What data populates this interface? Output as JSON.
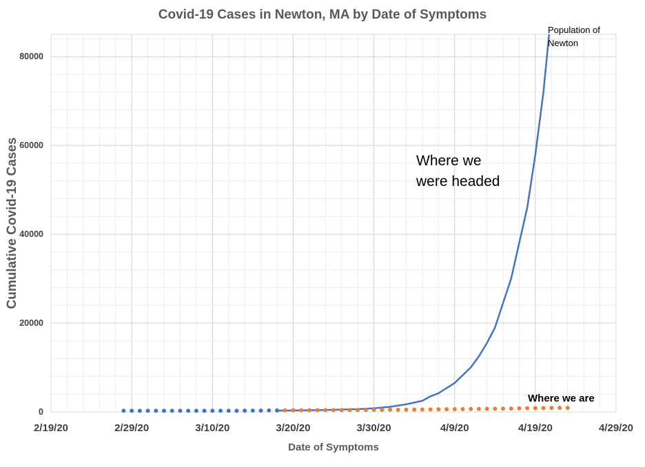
{
  "chart_data": {
    "type": "line",
    "title": "Covid-19 Cases in Newton, MA by Date of Symptoms",
    "xlabel": "Date of Symptoms",
    "ylabel": "Cumulative Covid-19 Cases",
    "x_range": [
      "2/19/20",
      "4/29/20"
    ],
    "ylim": [
      0,
      85000
    ],
    "x_ticks": [
      "2/19/20",
      "2/29/20",
      "3/10/20",
      "3/20/20",
      "3/30/20",
      "4/9/20",
      "4/19/20",
      "4/29/20"
    ],
    "y_ticks": [
      0,
      20000,
      40000,
      60000,
      80000
    ],
    "grid": true,
    "series": [
      {
        "style": "line",
        "color": "#4472C4",
        "points": [
          [
            "3/18/20",
            300
          ],
          [
            "3/20/20",
            330
          ],
          [
            "3/22/20",
            380
          ],
          [
            "3/24/20",
            440
          ],
          [
            "3/26/20",
            520
          ],
          [
            "3/28/20",
            620
          ],
          [
            "3/30/20",
            800
          ],
          [
            "4/1/20",
            1150
          ],
          [
            "4/3/20",
            1700
          ],
          [
            "4/5/20",
            2500
          ],
          [
            "4/6/20",
            3500
          ],
          [
            "4/7/20",
            4200
          ],
          [
            "4/9/20",
            6500
          ],
          [
            "4/11/20",
            10000
          ],
          [
            "4/12/20",
            12500
          ],
          [
            "4/13/20",
            15500
          ],
          [
            "4/14/20",
            19000
          ],
          [
            "4/15/20",
            24500
          ],
          [
            "4/16/20",
            30000
          ],
          [
            "4/17/20",
            38000
          ],
          [
            "4/18/20",
            46000
          ],
          [
            "4/19/20",
            58000
          ],
          [
            "4/20/20",
            72000
          ],
          [
            "4/20.7/20",
            85000
          ]
        ]
      },
      {
        "style": "dots",
        "color": "#4472C4",
        "points": [
          [
            "2/28/20",
            250
          ],
          [
            "2/29/20",
            250
          ],
          [
            "3/1/20",
            250
          ],
          [
            "3/2/20",
            250
          ],
          [
            "3/3/20",
            250
          ],
          [
            "3/4/20",
            250
          ],
          [
            "3/5/20",
            250
          ],
          [
            "3/6/20",
            250
          ],
          [
            "3/7/20",
            250
          ],
          [
            "3/8/20",
            250
          ],
          [
            "3/9/20",
            250
          ],
          [
            "3/10/20",
            250
          ],
          [
            "3/11/20",
            250
          ],
          [
            "3/12/20",
            250
          ],
          [
            "3/13/20",
            250
          ],
          [
            "3/14/20",
            280
          ],
          [
            "3/15/20",
            300
          ],
          [
            "3/16/20",
            300
          ],
          [
            "3/17/20",
            320
          ],
          [
            "3/18/20",
            330
          ]
        ]
      },
      {
        "style": "dots",
        "color": "#ED7D31",
        "points": [
          [
            "3/19/20",
            350
          ],
          [
            "3/20/20",
            360
          ],
          [
            "3/21/20",
            370
          ],
          [
            "3/22/20",
            380
          ],
          [
            "3/23/20",
            390
          ],
          [
            "3/24/20",
            400
          ],
          [
            "3/25/20",
            410
          ],
          [
            "3/26/20",
            420
          ],
          [
            "3/27/20",
            430
          ],
          [
            "3/28/20",
            440
          ],
          [
            "3/29/20",
            450
          ],
          [
            "3/30/20",
            460
          ],
          [
            "3/31/20",
            470
          ],
          [
            "4/1/20",
            480
          ],
          [
            "4/2/20",
            490
          ],
          [
            "4/3/20",
            500
          ],
          [
            "4/4/20",
            520
          ],
          [
            "4/5/20",
            540
          ],
          [
            "4/6/20",
            560
          ],
          [
            "4/7/20",
            580
          ],
          [
            "4/8/20",
            600
          ],
          [
            "4/9/20",
            620
          ],
          [
            "4/10/20",
            640
          ],
          [
            "4/11/20",
            660
          ],
          [
            "4/12/20",
            680
          ],
          [
            "4/13/20",
            700
          ],
          [
            "4/14/20",
            720
          ],
          [
            "4/15/20",
            740
          ],
          [
            "4/16/20",
            760
          ],
          [
            "4/17/20",
            800
          ],
          [
            "4/18/20",
            830
          ],
          [
            "4/19/20",
            860
          ],
          [
            "4/20/20",
            880
          ],
          [
            "4/21/20",
            900
          ],
          [
            "4/22/20",
            910
          ],
          [
            "4/23/20",
            920
          ]
        ]
      }
    ],
    "annotations": [
      {
        "lines": [
          "Population of",
          "Newton"
        ],
        "style": "small"
      },
      {
        "lines": [
          "Where we",
          "were headed"
        ],
        "style": "big"
      },
      {
        "lines": [
          "Where we are"
        ],
        "style": "bold"
      }
    ]
  }
}
